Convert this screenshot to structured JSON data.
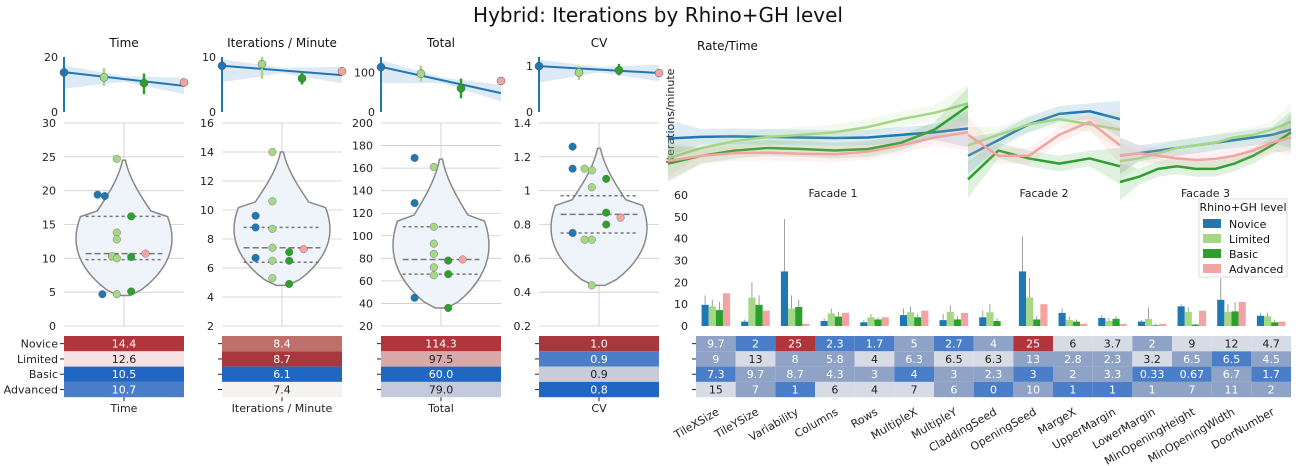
{
  "title": "Hybrid: Iterations by Rhino+GH level",
  "levels": [
    "Novice",
    "Limited",
    "Basic",
    "Advanced"
  ],
  "level_colors": {
    "Novice": "#1f77b4",
    "Limited": "#a6d785",
    "Basic": "#2ca02c",
    "Advanced": "#f4a3a3"
  },
  "chart_data": [
    {
      "id": "time",
      "type": "scatter",
      "title": "Time",
      "xlabel": "Time",
      "reg": {
        "ylim": [
          0,
          20
        ],
        "yticks": [
          0,
          20
        ],
        "y_start": 14.5,
        "y_end": 9.5,
        "points": [
          {
            "level": "Novice",
            "x": 0,
            "y": 14.4
          },
          {
            "level": "Limited",
            "x": 1,
            "y": 12.6,
            "err": [
              9.5,
              16
            ]
          },
          {
            "level": "Basic",
            "x": 2,
            "y": 10.5,
            "err": [
              6.5,
              14
            ]
          },
          {
            "level": "Advanced",
            "x": 3,
            "y": 10.7
          }
        ]
      },
      "violin": {
        "ylim": [
          0,
          30
        ],
        "yticks": [
          0,
          5,
          10,
          15,
          20,
          25,
          30
        ],
        "range": [
          4.5,
          24.5
        ],
        "quartiles": [
          9.8,
          10.7,
          16.2
        ],
        "points": [
          {
            "level": "Novice",
            "x": -0.55,
            "y": 19.4
          },
          {
            "level": "Novice",
            "x": -0.4,
            "y": 19.2
          },
          {
            "level": "Novice",
            "x": -0.45,
            "y": 4.7
          },
          {
            "level": "Limited",
            "x": -0.15,
            "y": 24.7
          },
          {
            "level": "Limited",
            "x": -0.15,
            "y": 13.8
          },
          {
            "level": "Limited",
            "x": -0.15,
            "y": 12.8
          },
          {
            "level": "Limited",
            "x": -0.25,
            "y": 10.3
          },
          {
            "level": "Limited",
            "x": -0.15,
            "y": 10.0
          },
          {
            "level": "Limited",
            "x": -0.15,
            "y": 4.7
          },
          {
            "level": "Basic",
            "x": 0.15,
            "y": 16.2
          },
          {
            "level": "Basic",
            "x": 0.15,
            "y": 10.2
          },
          {
            "level": "Basic",
            "x": 0.15,
            "y": 5.1
          },
          {
            "level": "Advanced",
            "x": 0.45,
            "y": 10.7
          }
        ]
      },
      "heat": {
        "labels": [
          "14.4",
          "12.6",
          "10.5",
          "10.7"
        ],
        "colors": [
          "#b2353c",
          "#f7e2e2",
          "#2166c0",
          "#4a7ec8"
        ]
      }
    },
    {
      "id": "ipm",
      "type": "scatter",
      "title": "Iterations / Minute",
      "xlabel": "Iterations / Minute",
      "reg": {
        "ylim": [
          0,
          10
        ],
        "yticks": [
          0,
          10
        ],
        "y_start": 8.4,
        "y_end": 6.7,
        "points": [
          {
            "level": "Novice",
            "x": 0,
            "y": 8.4
          },
          {
            "level": "Limited",
            "x": 1,
            "y": 8.7,
            "err": [
              6,
              10
            ]
          },
          {
            "level": "Basic",
            "x": 2,
            "y": 6.1,
            "err": [
              5,
              7.3
            ]
          },
          {
            "level": "Advanced",
            "x": 3,
            "y": 7.4
          }
        ]
      },
      "violin": {
        "ylim": [
          2,
          16
        ],
        "yticks": [
          2,
          4,
          6,
          8,
          10,
          12,
          14,
          16
        ],
        "range": [
          4.8,
          14
        ],
        "quartiles": [
          6.4,
          7.4,
          8.8
        ],
        "points": [
          {
            "level": "Novice",
            "x": -0.55,
            "y": 9.6
          },
          {
            "level": "Novice",
            "x": -0.55,
            "y": 8.8
          },
          {
            "level": "Novice",
            "x": -0.55,
            "y": 6.7
          },
          {
            "level": "Limited",
            "x": -0.2,
            "y": 14.0
          },
          {
            "level": "Limited",
            "x": -0.2,
            "y": 10.6
          },
          {
            "level": "Limited",
            "x": -0.2,
            "y": 8.7
          },
          {
            "level": "Limited",
            "x": -0.2,
            "y": 7.4
          },
          {
            "level": "Limited",
            "x": -0.2,
            "y": 6.5
          },
          {
            "level": "Limited",
            "x": -0.2,
            "y": 5.3
          },
          {
            "level": "Basic",
            "x": 0.15,
            "y": 7.1
          },
          {
            "level": "Basic",
            "x": 0.15,
            "y": 6.5
          },
          {
            "level": "Basic",
            "x": 0.15,
            "y": 4.9
          },
          {
            "level": "Advanced",
            "x": 0.45,
            "y": 7.3
          }
        ]
      },
      "heat": {
        "labels": [
          "8.4",
          "8.7",
          "6.1",
          "7.4"
        ],
        "colors": [
          "#c0706b",
          "#a8383d",
          "#2166c0",
          "#f5f2f2"
        ]
      }
    },
    {
      "id": "total",
      "type": "scatter",
      "title": "Total",
      "xlabel": "Total",
      "reg": {
        "ylim": [
          0,
          140
        ],
        "yticks": [
          0,
          100
        ],
        "y_start": 115,
        "y_end": 48,
        "points": [
          {
            "level": "Novice",
            "x": 0,
            "y": 114.3
          },
          {
            "level": "Limited",
            "x": 1,
            "y": 97.5,
            "err": [
              78,
              118
            ]
          },
          {
            "level": "Basic",
            "x": 2,
            "y": 60,
            "err": [
              35,
              85
            ]
          },
          {
            "level": "Advanced",
            "x": 3,
            "y": 79
          }
        ]
      },
      "violin": {
        "ylim": [
          20,
          200
        ],
        "yticks": [
          20,
          40,
          60,
          80,
          100,
          120,
          140,
          160,
          180,
          200
        ],
        "range": [
          36,
          168
        ],
        "quartiles": [
          66,
          79,
          108
        ],
        "points": [
          {
            "level": "Novice",
            "x": -0.55,
            "y": 169
          },
          {
            "level": "Novice",
            "x": -0.55,
            "y": 129
          },
          {
            "level": "Novice",
            "x": -0.55,
            "y": 45
          },
          {
            "level": "Limited",
            "x": -0.15,
            "y": 161
          },
          {
            "level": "Limited",
            "x": -0.15,
            "y": 108
          },
          {
            "level": "Limited",
            "x": -0.15,
            "y": 93
          },
          {
            "level": "Limited",
            "x": -0.15,
            "y": 84
          },
          {
            "level": "Limited",
            "x": -0.15,
            "y": 72
          },
          {
            "level": "Limited",
            "x": -0.15,
            "y": 65
          },
          {
            "level": "Basic",
            "x": 0.15,
            "y": 78
          },
          {
            "level": "Basic",
            "x": 0.15,
            "y": 66
          },
          {
            "level": "Basic",
            "x": 0.15,
            "y": 36
          },
          {
            "level": "Advanced",
            "x": 0.45,
            "y": 79
          }
        ]
      },
      "heat": {
        "labels": [
          "114.3",
          "97.5",
          "60.0",
          "79.0"
        ],
        "colors": [
          "#b2353c",
          "#d9a8a8",
          "#2166c0",
          "#c3cadb"
        ]
      }
    },
    {
      "id": "cv",
      "type": "scatter",
      "title": "CV",
      "xlabel": "CV",
      "reg": {
        "ylim": [
          0,
          1.2
        ],
        "yticks": [
          0,
          1
        ],
        "y_start": 1.0,
        "y_end": 0.85,
        "points": [
          {
            "level": "Novice",
            "x": 0,
            "y": 1.0
          },
          {
            "level": "Limited",
            "x": 1,
            "y": 0.86,
            "err": [
              0.7,
              1.0
            ]
          },
          {
            "level": "Basic",
            "x": 2,
            "y": 0.91,
            "err": [
              0.8,
              1.05
            ]
          },
          {
            "level": "Advanced",
            "x": 3,
            "y": 0.85
          }
        ]
      },
      "violin": {
        "ylim": [
          0.2,
          1.4
        ],
        "yticks": [
          0.2,
          0.4,
          0.6,
          0.8,
          1.0,
          1.2,
          1.4
        ],
        "range": [
          0.44,
          1.25
        ],
        "quartiles": [
          0.75,
          0.86,
          0.97
        ],
        "points": [
          {
            "level": "Novice",
            "x": -0.55,
            "y": 1.26
          },
          {
            "level": "Novice",
            "x": -0.55,
            "y": 1.13
          },
          {
            "level": "Novice",
            "x": -0.55,
            "y": 0.75
          },
          {
            "level": "Limited",
            "x": -0.3,
            "y": 1.13
          },
          {
            "level": "Limited",
            "x": -0.15,
            "y": 1.12
          },
          {
            "level": "Limited",
            "x": -0.15,
            "y": 1.02
          },
          {
            "level": "Limited",
            "x": -0.3,
            "y": 0.71
          },
          {
            "level": "Limited",
            "x": -0.15,
            "y": 0.71
          },
          {
            "level": "Limited",
            "x": -0.15,
            "y": 0.44
          },
          {
            "level": "Basic",
            "x": 0.15,
            "y": 1.07
          },
          {
            "level": "Basic",
            "x": 0.15,
            "y": 0.87
          },
          {
            "level": "Basic",
            "x": 0.15,
            "y": 0.8
          },
          {
            "level": "Advanced",
            "x": 0.45,
            "y": 0.84
          }
        ]
      },
      "heat": {
        "labels": [
          "1.0",
          "0.9",
          "0.9",
          "0.8"
        ],
        "colors": [
          "#a8383d",
          "#4a7ec8",
          "#c8ccd8",
          "#2166c0"
        ]
      }
    },
    {
      "id": "rate",
      "type": "line",
      "title": "Rate/Time",
      "ylabel": "Iterations/minute",
      "ylim": [
        0,
        25
      ],
      "yticks": [
        0,
        5,
        10,
        15,
        20,
        25
      ],
      "facades": [
        "Facade 1",
        "Facade 2",
        "Facade 3"
      ],
      "series": [
        {
          "level": "Novice",
          "curves": [
            [
              8.3,
              8.6,
              8.7,
              8.6,
              8.5,
              8.4,
              8.5,
              9.0,
              9.5,
              10.2
            ],
            [
              5,
              8,
              11,
              13,
              13.5,
              12
            ],
            [
              5,
              5.5,
              6,
              6.5,
              7,
              7.5,
              8,
              8.5,
              9,
              10
            ]
          ]
        },
        {
          "level": "Limited",
          "curves": [
            [
              4.5,
              6.5,
              7.8,
              8.6,
              9,
              9.5,
              10.5,
              12,
              13.2,
              15
            ],
            [
              7,
              9,
              11,
              12,
              11,
              10
            ],
            [
              4,
              4.5,
              5.5,
              6.5,
              7,
              7.5,
              8.5,
              9,
              10,
              11.5
            ]
          ]
        },
        {
          "level": "Basic",
          "curves": [
            [
              3.5,
              5,
              6,
              6.5,
              6.3,
              6,
              6.3,
              7.5,
              10,
              14.5
            ],
            [
              0.5,
              6,
              4.5,
              3.5,
              4.5,
              3
            ],
            [
              0,
              1,
              2.5,
              3,
              2.5,
              2.5,
              3.5,
              5,
              7,
              9.5
            ]
          ]
        },
        {
          "level": "Advanced",
          "curves": [
            [
              4,
              5,
              5.5,
              5.6,
              5.4,
              5.3,
              5.8,
              7,
              8.5,
              9.5
            ],
            [
              9,
              5,
              5,
              9,
              11.5,
              7
            ],
            [
              5,
              5.5,
              5,
              4.5,
              4.2,
              4.4,
              5,
              6,
              7.5,
              8.5
            ]
          ]
        }
      ]
    },
    {
      "id": "params",
      "type": "bar",
      "title": "",
      "legend_title": "Rhino+GH level",
      "ylim": [
        0,
        60
      ],
      "yticks": [
        0,
        10,
        20,
        30,
        40,
        50,
        60
      ],
      "categories": [
        "TileXSize",
        "TileYSize",
        "Variability",
        "Columns",
        "Rows",
        "MultipleX",
        "MultipleY",
        "CladdingSeed",
        "OpeningSeed",
        "MargeX",
        "UpperMargin",
        "LowerMargin",
        "MinOpeningHeight",
        "MinOpeningWidth",
        "DoorNumber"
      ],
      "series": [
        {
          "name": "Novice",
          "values": [
            9.7,
            2,
            25,
            2.3,
            1.7,
            5,
            2.7,
            4,
            25,
            6,
            3.7,
            2,
            9,
            12,
            4.7
          ],
          "err": [
            14,
            3,
            49,
            3.5,
            2.7,
            8,
            5.5,
            7,
            41,
            8,
            5,
            2.8,
            10,
            22,
            6
          ]
        },
        {
          "name": "Limited",
          "values": [
            9,
            13,
            8,
            5.8,
            4,
            6.3,
            6.5,
            6.3,
            13,
            2.8,
            2.3,
            3.2,
            6.5,
            6.5,
            4.5
          ],
          "err": [
            12,
            20,
            14,
            8,
            5.5,
            9,
            9.5,
            10,
            22,
            4.5,
            3.8,
            8.5,
            8.5,
            10,
            6
          ]
        },
        {
          "name": "Basic",
          "values": [
            7.3,
            9.7,
            8.7,
            4.3,
            3,
            4,
            3,
            2.3,
            3,
            2,
            3.3,
            0.33,
            0.67,
            6.7,
            1.7
          ],
          "err": [
            11,
            14,
            12,
            6.5,
            4,
            5.5,
            4.5,
            3.5,
            4.5,
            3,
            4.5,
            1,
            1,
            11,
            3
          ]
        },
        {
          "name": "Advanced",
          "values": [
            15,
            7,
            1,
            6,
            4,
            7,
            6,
            0,
            10,
            1,
            1,
            1,
            7,
            11,
            2
          ]
        }
      ],
      "table": [
        [
          "9.7",
          "2",
          "25",
          "2.3",
          "1.7",
          "5",
          "2.7",
          "4",
          "25",
          "6",
          "3.7",
          "2",
          "9",
          "12",
          "4.7"
        ],
        [
          "9",
          "13",
          "8",
          "5.8",
          "4",
          "6.3",
          "6.5",
          "6.3",
          "13",
          "2.8",
          "2.3",
          "3.2",
          "6.5",
          "6.5",
          "4.5"
        ],
        [
          "7.3",
          "9.7",
          "8.7",
          "4.3",
          "3",
          "4",
          "3",
          "2.3",
          "3",
          "2",
          "3.3",
          "0.33",
          "0.67",
          "6.7",
          "1.7"
        ],
        [
          "15",
          "7",
          "1",
          "6",
          "4",
          "7",
          "6",
          "0",
          "10",
          "1",
          "1",
          "1",
          "7",
          "11",
          "2"
        ]
      ]
    }
  ]
}
